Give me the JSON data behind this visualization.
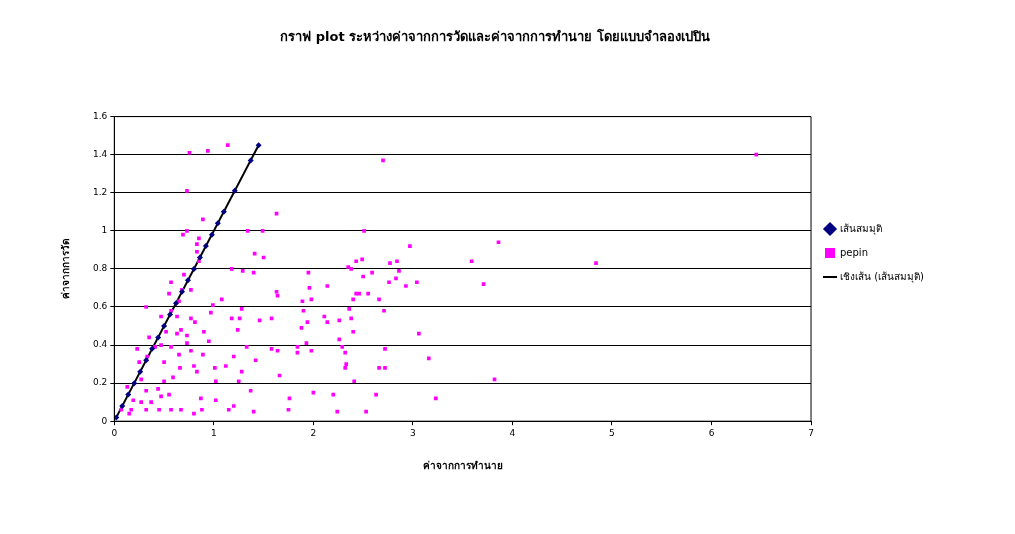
{
  "chart_data": {
    "type": "scatter",
    "title": "กราฟ plot ระหว่างค่าจากการวัดและค่าจากการทำนาย โดยแบบจำลองเปปิน",
    "xlabel": "ค่าจากการทำนาย",
    "ylabel": "ค่าจากการวัด",
    "xlim": [
      0,
      7
    ],
    "xticks": [
      0,
      1,
      2,
      3,
      4,
      5,
      6,
      7
    ],
    "ylim": [
      0,
      1.6
    ],
    "yticks": [
      0,
      0.2,
      0.4,
      0.6,
      0.8,
      1,
      1.2,
      1.4,
      1.6
    ],
    "grid": "y",
    "legend": "right",
    "series": [
      {
        "name": "เส้นสมมุติ",
        "type": "scatter",
        "marker": "diamond",
        "color": "#000080",
        "x": [
          0.02,
          0.08,
          0.14,
          0.2,
          0.26,
          0.32,
          0.38,
          0.44,
          0.5,
          0.56,
          0.62,
          0.68,
          0.74,
          0.8,
          0.86,
          0.92,
          0.98,
          1.04,
          1.1,
          1.21,
          1.37,
          1.45
        ],
        "values": [
          0.02,
          0.08,
          0.14,
          0.2,
          0.26,
          0.32,
          0.38,
          0.44,
          0.5,
          0.56,
          0.62,
          0.68,
          0.74,
          0.8,
          0.86,
          0.92,
          0.98,
          1.04,
          1.1,
          1.21,
          1.37,
          1.45
        ]
      },
      {
        "name": "pepin",
        "type": "scatter",
        "marker": "square",
        "color": "#ff00ff",
        "x": [
          0.755,
          0.94,
          1.14,
          0.73,
          2.7,
          6.45,
          4.84,
          3.86,
          3.59,
          3.71,
          3.82,
          3.23,
          3.16,
          3.06,
          3.04,
          2.97,
          2.51,
          2.49,
          1.63,
          1.49,
          1.34,
          1.41,
          1.5,
          1.08,
          1.18,
          1.29,
          1.4,
          1.28,
          1.26,
          1.18,
          1.24,
          1.46,
          1.58,
          1.63,
          1.64,
          1.66,
          1.76,
          1.75,
          1.4,
          1.2,
          1.15,
          1.02,
          1.12,
          1.2,
          1.28,
          1.33,
          1.58,
          1.64,
          1.84,
          1.84,
          1.93,
          1.98,
          1.88,
          1.94,
          1.9,
          1.89,
          1.98,
          1.96,
          1.95,
          2.14,
          2.14,
          2.11,
          2.2,
          2.0,
          2.24,
          2.53,
          2.41,
          2.32,
          2.33,
          2.38,
          2.36,
          2.26,
          2.26,
          2.29,
          2.4,
          2.4,
          2.43,
          2.46,
          2.55,
          2.5,
          2.43,
          2.38,
          2.35,
          2.59,
          2.66,
          2.71,
          2.72,
          2.66,
          2.72,
          2.86,
          2.84,
          2.77,
          2.83,
          2.76,
          2.93,
          2.63,
          2.32,
          1.37,
          1.42,
          1.25,
          0.99,
          0.9,
          0.95,
          0.97,
          1.02,
          1.01,
          0.89,
          0.8,
          0.83,
          0.87,
          0.88,
          0.8,
          0.67,
          0.57,
          0.45,
          0.32,
          0.17,
          0.19,
          0.15,
          0.27,
          0.37,
          0.47,
          0.55,
          0.59,
          0.5,
          0.44,
          0.32,
          0.27,
          0.25,
          0.33,
          0.35,
          0.32,
          0.47,
          0.57,
          0.57,
          0.55,
          0.65,
          0.7,
          0.68,
          0.77,
          0.85,
          0.83,
          0.83,
          0.85,
          0.89,
          0.69,
          0.73,
          0.67,
          0.73,
          0.63,
          0.52,
          0.47,
          0.57,
          0.5,
          0.65,
          0.73,
          0.77,
          0.66,
          0.41,
          0.23,
          0.13,
          0.07,
          0.63,
          0.77,
          0.81
        ],
        "values": [
          1.41,
          1.42,
          1.45,
          1.21,
          1.37,
          1.4,
          0.83,
          0.94,
          0.84,
          0.72,
          0.22,
          0.12,
          0.33,
          0.46,
          0.73,
          0.92,
          1.0,
          0.85,
          1.09,
          1.0,
          1.0,
          0.88,
          0.86,
          0.64,
          0.8,
          0.79,
          0.78,
          0.59,
          0.54,
          0.54,
          0.48,
          0.53,
          0.54,
          0.68,
          0.66,
          0.24,
          0.12,
          0.06,
          0.05,
          0.08,
          0.06,
          0.11,
          0.29,
          0.34,
          0.26,
          0.39,
          0.38,
          0.37,
          0.36,
          0.39,
          0.41,
          0.37,
          0.49,
          0.52,
          0.58,
          0.63,
          0.64,
          0.7,
          0.78,
          0.71,
          0.52,
          0.55,
          0.14,
          0.15,
          0.05,
          0.05,
          0.21,
          0.36,
          0.3,
          0.54,
          0.59,
          0.53,
          0.43,
          0.39,
          0.47,
          0.64,
          0.67,
          0.67,
          0.67,
          0.76,
          0.84,
          0.8,
          0.81,
          0.78,
          0.64,
          0.58,
          0.38,
          0.28,
          0.28,
          0.79,
          0.84,
          0.83,
          0.75,
          0.73,
          0.71,
          0.14,
          0.28,
          0.16,
          0.32,
          0.21,
          0.61,
          0.47,
          0.42,
          0.57,
          0.21,
          0.28,
          0.35,
          0.29,
          0.26,
          0.12,
          0.06,
          0.04,
          0.06,
          0.06,
          0.06,
          0.06,
          0.06,
          0.11,
          0.04,
          0.1,
          0.1,
          0.13,
          0.14,
          0.23,
          0.21,
          0.17,
          0.16,
          0.22,
          0.31,
          0.34,
          0.44,
          0.6,
          0.55,
          0.58,
          0.73,
          0.67,
          0.63,
          0.77,
          0.69,
          0.69,
          0.84,
          0.89,
          0.93,
          0.96,
          1.06,
          0.98,
          1.0,
          0.48,
          0.45,
          0.46,
          0.47,
          0.4,
          0.39,
          0.31,
          0.35,
          0.41,
          0.37,
          0.28,
          0.39,
          0.38,
          0.18,
          0.06,
          0.55,
          0.54,
          0.52
        ]
      },
      {
        "name": "เชิงเส้น (เส้นสมมุติ)",
        "type": "line",
        "marker": "none",
        "line_style": "solid",
        "color": "#000000",
        "x": [
          0.02,
          1.45
        ],
        "values": [
          0.02,
          1.45
        ]
      }
    ]
  }
}
